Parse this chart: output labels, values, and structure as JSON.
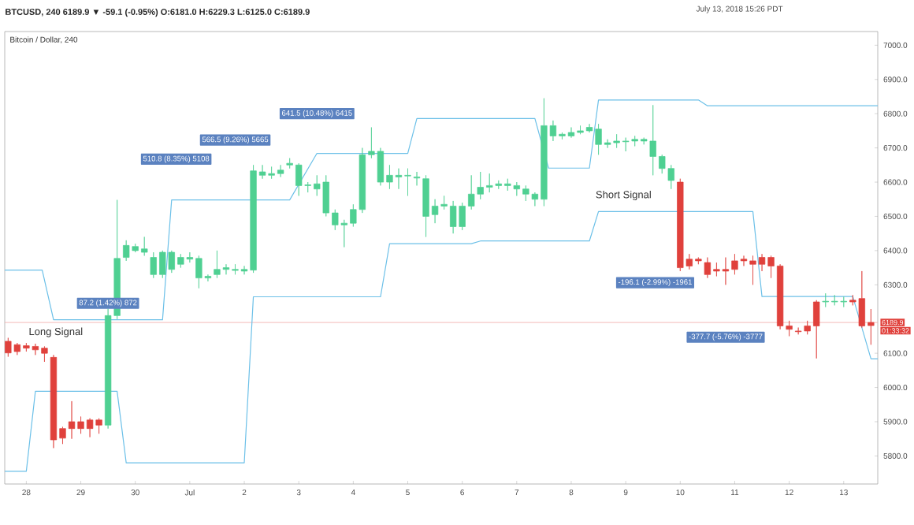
{
  "chart_data": {
    "type": "candlestick",
    "title": "BTCUSD, 240 6189.9 ▼ -59.1 (-0.95%) O:6181.0 H:6229.3 L:6125.0 C:6189.9",
    "subtitle": "Bitcoin / Dollar, 240",
    "x": [
      "2018-06-27T16:00",
      "2018-06-27T20:00",
      "2018-06-28T00:00",
      "2018-06-28T04:00",
      "2018-06-28T08:00",
      "2018-06-28T12:00",
      "2018-06-28T16:00",
      "2018-06-28T20:00",
      "2018-06-29T00:00",
      "2018-06-29T04:00",
      "2018-06-29T08:00",
      "2018-06-29T12:00",
      "2018-06-29T16:00",
      "2018-06-29T20:00",
      "2018-06-30T00:00",
      "2018-06-30T04:00",
      "2018-06-30T08:00",
      "2018-06-30T12:00",
      "2018-06-30T16:00",
      "2018-06-30T20:00",
      "2018-07-01T00:00",
      "2018-07-01T04:00",
      "2018-07-01T08:00",
      "2018-07-01T12:00",
      "2018-07-01T16:00",
      "2018-07-01T20:00",
      "2018-07-02T00:00",
      "2018-07-02T04:00",
      "2018-07-02T08:00",
      "2018-07-02T12:00",
      "2018-07-02T16:00",
      "2018-07-02T20:00",
      "2018-07-03T00:00",
      "2018-07-03T04:00",
      "2018-07-03T08:00",
      "2018-07-03T12:00",
      "2018-07-03T16:00",
      "2018-07-03T20:00",
      "2018-07-04T00:00",
      "2018-07-04T04:00",
      "2018-07-04T08:00",
      "2018-07-04T12:00",
      "2018-07-04T16:00",
      "2018-07-04T20:00",
      "2018-07-05T00:00",
      "2018-07-05T04:00",
      "2018-07-05T08:00",
      "2018-07-05T12:00",
      "2018-07-05T16:00",
      "2018-07-05T20:00",
      "2018-07-06T00:00",
      "2018-07-06T04:00",
      "2018-07-06T08:00",
      "2018-07-06T12:00",
      "2018-07-06T16:00",
      "2018-07-06T20:00",
      "2018-07-07T00:00",
      "2018-07-07T04:00",
      "2018-07-07T08:00",
      "2018-07-07T12:00",
      "2018-07-07T16:00",
      "2018-07-07T20:00",
      "2018-07-08T00:00",
      "2018-07-08T04:00",
      "2018-07-08T08:00",
      "2018-07-08T12:00",
      "2018-07-08T16:00",
      "2018-07-08T20:00",
      "2018-07-09T00:00",
      "2018-07-09T04:00",
      "2018-07-09T08:00",
      "2018-07-09T12:00",
      "2018-07-09T16:00",
      "2018-07-09T20:00",
      "2018-07-10T00:00",
      "2018-07-10T04:00",
      "2018-07-10T08:00",
      "2018-07-10T12:00",
      "2018-07-10T16:00",
      "2018-07-10T20:00",
      "2018-07-11T00:00",
      "2018-07-11T04:00",
      "2018-07-11T08:00",
      "2018-07-11T12:00",
      "2018-07-11T16:00",
      "2018-07-11T20:00",
      "2018-07-12T00:00",
      "2018-07-12T04:00",
      "2018-07-12T08:00",
      "2018-07-12T12:00",
      "2018-07-12T16:00",
      "2018-07-12T20:00",
      "2018-07-13T00:00",
      "2018-07-13T04:00",
      "2018-07-13T08:00",
      "2018-07-13T12:00"
    ],
    "ohlc": [
      [
        6135,
        6145,
        6090,
        6101
      ],
      [
        6125,
        6130,
        6095,
        6105
      ],
      [
        6122,
        6130,
        6105,
        6115
      ],
      [
        6120,
        6128,
        6095,
        6110
      ],
      [
        6115,
        6120,
        6075,
        6100
      ],
      [
        6088,
        6095,
        5823,
        5847
      ],
      [
        5880,
        5885,
        5835,
        5852
      ],
      [
        5900,
        5960,
        5850,
        5880
      ],
      [
        5900,
        5915,
        5865,
        5880
      ],
      [
        5905,
        5910,
        5855,
        5880
      ],
      [
        5905,
        5910,
        5865,
        5890
      ],
      [
        5890,
        6230,
        5880,
        6210
      ],
      [
        6210,
        6548,
        6200,
        6377
      ],
      [
        6380,
        6430,
        6370,
        6415
      ],
      [
        6400,
        6420,
        6395,
        6412
      ],
      [
        6395,
        6440,
        6385,
        6405
      ],
      [
        6330,
        6395,
        6320,
        6380
      ],
      [
        6330,
        6400,
        6320,
        6395
      ],
      [
        6345,
        6400,
        6335,
        6395
      ],
      [
        6360,
        6390,
        6350,
        6380
      ],
      [
        6375,
        6395,
        6365,
        6380
      ],
      [
        6320,
        6385,
        6290,
        6377
      ],
      [
        6320,
        6330,
        6310,
        6325
      ],
      [
        6330,
        6400,
        6320,
        6345
      ],
      [
        6345,
        6360,
        6330,
        6350
      ],
      [
        6342,
        6360,
        6330,
        6345
      ],
      [
        6340,
        6355,
        6330,
        6345
      ],
      [
        6343,
        6650,
        6335,
        6633
      ],
      [
        6620,
        6650,
        6610,
        6630
      ],
      [
        6620,
        6645,
        6610,
        6625
      ],
      [
        6625,
        6650,
        6615,
        6635
      ],
      [
        6650,
        6670,
        6640,
        6655
      ],
      [
        6590,
        6655,
        6560,
        6650
      ],
      [
        6590,
        6600,
        6570,
        6592
      ],
      [
        6580,
        6620,
        6560,
        6595
      ],
      [
        6510,
        6620,
        6500,
        6600
      ],
      [
        6475,
        6520,
        6460,
        6510
      ],
      [
        6475,
        6490,
        6410,
        6480
      ],
      [
        6480,
        6535,
        6470,
        6520
      ],
      [
        6520,
        6700,
        6510,
        6680
      ],
      [
        6680,
        6760,
        6670,
        6690
      ],
      [
        6600,
        6700,
        6590,
        6690
      ],
      [
        6600,
        6650,
        6580,
        6620
      ],
      [
        6615,
        6640,
        6580,
        6620
      ],
      [
        6618,
        6640,
        6560,
        6620
      ],
      [
        6612,
        6630,
        6590,
        6615
      ],
      [
        6500,
        6620,
        6440,
        6610
      ],
      [
        6505,
        6550,
        6480,
        6530
      ],
      [
        6530,
        6560,
        6520,
        6535
      ],
      [
        6470,
        6545,
        6450,
        6530
      ],
      [
        6470,
        6540,
        6460,
        6530
      ],
      [
        6530,
        6620,
        6520,
        6565
      ],
      [
        6565,
        6630,
        6550,
        6585
      ],
      [
        6585,
        6625,
        6570,
        6590
      ],
      [
        6590,
        6605,
        6580,
        6595
      ],
      [
        6590,
        6610,
        6575,
        6595
      ],
      [
        6580,
        6600,
        6560,
        6590
      ],
      [
        6565,
        6590,
        6545,
        6580
      ],
      [
        6550,
        6570,
        6530,
        6565
      ],
      [
        6550,
        6845,
        6530,
        6765
      ],
      [
        6735,
        6780,
        6720,
        6765
      ],
      [
        6735,
        6745,
        6725,
        6740
      ],
      [
        6735,
        6760,
        6730,
        6745
      ],
      [
        6745,
        6765,
        6740,
        6750
      ],
      [
        6750,
        6770,
        6745,
        6760
      ],
      [
        6710,
        6770,
        6680,
        6755
      ],
      [
        6710,
        6725,
        6700,
        6715
      ],
      [
        6715,
        6740,
        6700,
        6720
      ],
      [
        6718,
        6730,
        6690,
        6720
      ],
      [
        6720,
        6735,
        6705,
        6725
      ],
      [
        6720,
        6730,
        6710,
        6725
      ],
      [
        6675,
        6825,
        6620,
        6720
      ],
      [
        6640,
        6680,
        6625,
        6675
      ],
      [
        6605,
        6650,
        6580,
        6640
      ],
      [
        6600,
        6610,
        6340,
        6350
      ],
      [
        6375,
        6390,
        6345,
        6355
      ],
      [
        6375,
        6380,
        6360,
        6370
      ],
      [
        6365,
        6380,
        6320,
        6330
      ],
      [
        6345,
        6365,
        6325,
        6340
      ],
      [
        6345,
        6380,
        6300,
        6340
      ],
      [
        6370,
        6390,
        6330,
        6345
      ],
      [
        6375,
        6385,
        6355,
        6370
      ],
      [
        6370,
        6385,
        6300,
        6360
      ],
      [
        6380,
        6390,
        6340,
        6360
      ],
      [
        6380,
        6385,
        6320,
        6355
      ],
      [
        6355,
        6360,
        6170,
        6180
      ],
      [
        6180,
        6195,
        6150,
        6170
      ],
      [
        6165,
        6175,
        6155,
        6163
      ],
      [
        6180,
        6195,
        6155,
        6165
      ],
      [
        6250,
        6255,
        6085,
        6180
      ],
      [
        6250,
        6275,
        6235,
        6252
      ],
      [
        6250,
        6270,
        6240,
        6252
      ],
      [
        6250,
        6265,
        6235,
        6252
      ],
      [
        6255,
        6270,
        6240,
        6250
      ],
      [
        6260,
        6340,
        6175,
        6180
      ],
      [
        6181,
        6229.3,
        6125,
        6189.9
      ]
    ],
    "colors": [
      "#e0413c",
      "#e0413c",
      "#e0413c",
      "#e0413c",
      "#e0413c",
      "#e0413c",
      "#e0413c",
      "#e0413c",
      "#e0413c",
      "#e0413c",
      "#e0413c",
      "#4fd092",
      "#4fd092",
      "#4fd092",
      "#4fd092",
      "#4fd092",
      "#4fd092",
      "#4fd092",
      "#4fd092",
      "#4fd092",
      "#4fd092",
      "#4fd092",
      "#4fd092",
      "#4fd092",
      "#4fd092",
      "#4fd092",
      "#4fd092",
      "#4fd092",
      "#4fd092",
      "#4fd092",
      "#4fd092",
      "#4fd092",
      "#4fd092",
      "#4fd092",
      "#4fd092",
      "#4fd092",
      "#4fd092",
      "#4fd092",
      "#4fd092",
      "#4fd092",
      "#4fd092",
      "#4fd092",
      "#4fd092",
      "#4fd092",
      "#4fd092",
      "#4fd092",
      "#4fd092",
      "#4fd092",
      "#4fd092",
      "#4fd092",
      "#4fd092",
      "#4fd092",
      "#4fd092",
      "#4fd092",
      "#4fd092",
      "#4fd092",
      "#4fd092",
      "#4fd092",
      "#4fd092",
      "#4fd092",
      "#4fd092",
      "#4fd092",
      "#4fd092",
      "#4fd092",
      "#4fd092",
      "#4fd092",
      "#4fd092",
      "#4fd092",
      "#4fd092",
      "#4fd092",
      "#4fd092",
      "#4fd092",
      "#4fd092",
      "#4fd092",
      "#e0413c",
      "#e0413c",
      "#e0413c",
      "#e0413c",
      "#e0413c",
      "#e0413c",
      "#e0413c",
      "#e0413c",
      "#e0413c",
      "#e0413c",
      "#e0413c",
      "#e0413c",
      "#e0413c",
      "#e0413c",
      "#e0413c",
      "#e0413c",
      "#4fd092",
      "#4fd092",
      "#4fd092",
      "#e0413c",
      "#e0413c",
      "#e0413c"
    ],
    "series": [
      {
        "type": "line",
        "color": "#6cc0e8",
        "x": [
          "2018-06-27T14:30",
          "2018-06-28T07:00",
          "2018-06-28T12:00",
          "2018-06-30T12:00",
          "2018-06-30T16:00",
          "2018-07-02T20:00",
          "2018-07-03T08:00",
          "2018-07-05T00:00",
          "2018-07-05T04:00",
          "2018-07-07T08:00",
          "2018-07-07T14:00",
          "2018-07-08T08:00",
          "2018-07-08T12:00",
          "2018-07-10T08:00",
          "2018-07-10T12:00",
          "2018-07-13T15:00"
        ],
        "values": [
          6343,
          6343,
          6198,
          6198,
          6548,
          6548,
          6684,
          6684,
          6786,
          6786,
          6641,
          6641,
          6840,
          6840,
          6823,
          6823
        ]
      },
      {
        "type": "line",
        "color": "#6cc0e8",
        "x": [
          "2018-06-27T14:30",
          "2018-06-28T00:00",
          "2018-06-28T04:00",
          "2018-06-29T16:00",
          "2018-06-29T20:00",
          "2018-07-02T00:00",
          "2018-07-02T04:00",
          "2018-07-04T12:00",
          "2018-07-04T16:00",
          "2018-07-06T04:00",
          "2018-07-06T08:00",
          "2018-07-08T08:00",
          "2018-07-08T12:00",
          "2018-07-11T08:00",
          "2018-07-11T12:00",
          "2018-07-13T04:00",
          "2018-07-13T12:00",
          "2018-07-13T15:00"
        ],
        "values": [
          5755,
          5755,
          5989,
          5989,
          5780,
          5780,
          6265,
          6265,
          6420,
          6420,
          6428,
          6428,
          6514,
          6514,
          6266,
          6266,
          6084,
          6084
        ]
      }
    ],
    "xlim": [
      "2018-06-27T14:30",
      "2018-07-13T15:00"
    ],
    "ylim": [
      5718,
      7040
    ],
    "xticks": [
      {
        "value": "2018-06-28",
        "label": "28"
      },
      {
        "value": "2018-06-29",
        "label": "29"
      },
      {
        "value": "2018-06-30",
        "label": "30"
      },
      {
        "value": "2018-07-01",
        "label": "Jul"
      },
      {
        "value": "2018-07-02",
        "label": "2"
      },
      {
        "value": "2018-07-03",
        "label": "3"
      },
      {
        "value": "2018-07-04",
        "label": "4"
      },
      {
        "value": "2018-07-05",
        "label": "5"
      },
      {
        "value": "2018-07-06",
        "label": "6"
      },
      {
        "value": "2018-07-07",
        "label": "7"
      },
      {
        "value": "2018-07-08",
        "label": "8"
      },
      {
        "value": "2018-07-09",
        "label": "9"
      },
      {
        "value": "2018-07-10",
        "label": "10"
      },
      {
        "value": "2018-07-11",
        "label": "11"
      },
      {
        "value": "2018-07-12",
        "label": "12"
      },
      {
        "value": "2018-07-13",
        "label": "13"
      }
    ],
    "yticks": [
      {
        "value": 5800,
        "label": "5800.0"
      },
      {
        "value": 5900,
        "label": "5900.0"
      },
      {
        "value": 6000,
        "label": "6000.0"
      },
      {
        "value": 6100,
        "label": "6100.0"
      },
      {
        "value": 6300,
        "label": "6300.0"
      },
      {
        "value": 6400,
        "label": "6400.0"
      },
      {
        "value": 6500,
        "label": "6500.0"
      },
      {
        "value": 6600,
        "label": "6600.0"
      },
      {
        "value": 6700,
        "label": "6700.0"
      },
      {
        "value": 6800,
        "label": "6800.0"
      },
      {
        "value": 6900,
        "label": "6900.0"
      },
      {
        "value": 7000,
        "label": "7000.0"
      }
    ],
    "ref_lines": [
      {
        "axis": "y",
        "value": 6189.9,
        "label": "6189.9",
        "color": "#f1a9a7",
        "line_style": "solid"
      }
    ],
    "annotations": [
      "641.5 (10.48%) 6415",
      "566.5 (9.26%) 5665",
      "510.8 (8.35%) 5108",
      "87.2 (1.42%) 872",
      "-196.1 (-2.99%) -1961",
      "-377.7 (-5.76%) -3777",
      "Long Signal",
      "Short Signal",
      "July 13, 2018 15:26 PDT",
      "01:33:32"
    ]
  }
}
